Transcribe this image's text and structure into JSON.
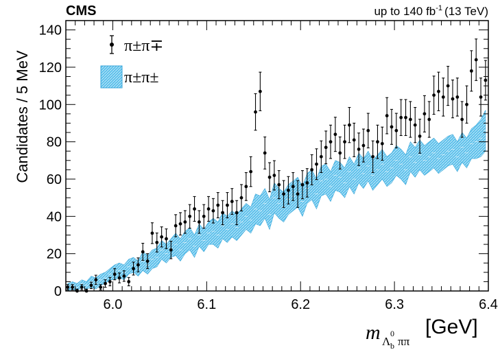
{
  "chart_data": {
    "type": "scatter",
    "experiment": "CMS",
    "lumi": "up to 140 fb",
    "lumi_exp": "-1",
    "energy": "(13 TeV)",
    "ylabel": "Candidates / 5 MeV",
    "xlabel_sym": "m",
    "xlabel_sub_base": "Λ",
    "xlabel_sub_b": "b",
    "xlabel_sub_0": "0",
    "xlabel_sub_tail": "ππ",
    "xlabel_unit": "[GeV]",
    "xlim": [
      5.95,
      6.4
    ],
    "ylim": [
      0,
      145
    ],
    "xticks": [
      "6.0",
      "6.1",
      "6.2",
      "6.3",
      "6.4"
    ],
    "yticks": [
      "0",
      "20",
      "40",
      "60",
      "80",
      "100",
      "120",
      "140"
    ],
    "legend": [
      {
        "label": "π±π∓",
        "style": "points",
        "color": "#000000"
      },
      {
        "label": "π±π±",
        "style": "band",
        "color": "#5bc0eb"
      }
    ],
    "series": [
      {
        "name": "π±π∓",
        "style": "points",
        "x": [
          5.952,
          5.957,
          5.962,
          5.967,
          5.972,
          5.977,
          5.982,
          5.987,
          5.992,
          5.997,
          6.002,
          6.007,
          6.012,
          6.017,
          6.022,
          6.027,
          6.032,
          6.037,
          6.042,
          6.047,
          6.052,
          6.057,
          6.062,
          6.067,
          6.072,
          6.077,
          6.082,
          6.087,
          6.092,
          6.097,
          6.102,
          6.107,
          6.112,
          6.117,
          6.122,
          6.127,
          6.132,
          6.137,
          6.142,
          6.147,
          6.152,
          6.157,
          6.162,
          6.167,
          6.172,
          6.177,
          6.182,
          6.187,
          6.192,
          6.197,
          6.202,
          6.207,
          6.212,
          6.217,
          6.222,
          6.227,
          6.232,
          6.237,
          6.242,
          6.247,
          6.252,
          6.257,
          6.262,
          6.267,
          6.272,
          6.277,
          6.282,
          6.287,
          6.292,
          6.297,
          6.302,
          6.307,
          6.312,
          6.317,
          6.322,
          6.327,
          6.332,
          6.337,
          6.342,
          6.347,
          6.352,
          6.357,
          6.362,
          6.367,
          6.372,
          6.377,
          6.382,
          6.387,
          6.392,
          6.397
        ],
        "y": [
          2,
          2,
          0,
          2,
          0,
          3,
          6,
          2,
          4,
          5,
          9,
          7,
          8,
          5,
          12,
          14,
          21,
          16,
          31,
          26,
          29,
          28,
          22,
          35,
          36,
          37,
          40,
          44,
          37,
          40,
          44,
          43,
          46,
          42,
          46,
          48,
          42,
          50,
          56,
          64,
          96,
          107,
          74,
          61,
          62,
          57,
          52,
          54,
          56,
          52,
          57,
          58,
          65,
          68,
          72,
          77,
          80,
          84,
          74,
          80,
          89,
          81,
          76,
          78,
          86,
          72,
          80,
          79,
          94,
          88,
          86,
          93,
          93,
          92,
          89,
          83,
          95,
          92,
          105,
          107,
          104,
          110,
          103,
          104,
          92,
          100,
          118,
          124,
          104,
          113
        ]
      },
      {
        "name": "π±π±",
        "style": "band",
        "x": [
          5.952,
          5.957,
          5.962,
          5.967,
          5.972,
          5.977,
          5.982,
          5.987,
          5.992,
          5.997,
          6.002,
          6.007,
          6.012,
          6.017,
          6.022,
          6.027,
          6.032,
          6.037,
          6.042,
          6.047,
          6.052,
          6.057,
          6.062,
          6.067,
          6.072,
          6.077,
          6.082,
          6.087,
          6.092,
          6.097,
          6.102,
          6.107,
          6.112,
          6.117,
          6.122,
          6.127,
          6.132,
          6.137,
          6.142,
          6.147,
          6.152,
          6.157,
          6.162,
          6.167,
          6.172,
          6.177,
          6.182,
          6.187,
          6.192,
          6.197,
          6.202,
          6.207,
          6.212,
          6.217,
          6.222,
          6.227,
          6.232,
          6.237,
          6.242,
          6.247,
          6.252,
          6.257,
          6.262,
          6.267,
          6.272,
          6.277,
          6.282,
          6.287,
          6.292,
          6.297,
          6.302,
          6.307,
          6.312,
          6.317,
          6.322,
          6.327,
          6.332,
          6.337,
          6.342,
          6.347,
          6.352,
          6.357,
          6.362,
          6.367,
          6.372,
          6.377,
          6.382,
          6.387,
          6.392,
          6.397
        ],
        "y": [
          2,
          3,
          2,
          4,
          3,
          5,
          4,
          6,
          7,
          9,
          10,
          11,
          10,
          13,
          14,
          12,
          16,
          14,
          17,
          18,
          22,
          20,
          23,
          25,
          22,
          26,
          28,
          24,
          30,
          27,
          31,
          32,
          30,
          35,
          33,
          36,
          34,
          37,
          40,
          38,
          44,
          43,
          47,
          41,
          50,
          47,
          45,
          49,
          51,
          53,
          48,
          55,
          57,
          52,
          59,
          60,
          56,
          62,
          61,
          58,
          64,
          60,
          66,
          63,
          67,
          62,
          65,
          68,
          64,
          66,
          70,
          68,
          65,
          72,
          69,
          73,
          70,
          72,
          74,
          71,
          73,
          75,
          76,
          72,
          77,
          74,
          79,
          80,
          82,
          86
        ],
        "err": [
          2,
          2,
          2,
          2,
          2,
          3,
          3,
          3,
          3,
          3,
          4,
          4,
          4,
          4,
          4,
          4,
          5,
          5,
          5,
          5,
          5,
          5,
          5,
          6,
          6,
          6,
          6,
          6,
          6,
          6,
          6,
          7,
          7,
          7,
          7,
          7,
          7,
          7,
          7,
          7,
          8,
          8,
          8,
          8,
          8,
          8,
          8,
          8,
          8,
          8,
          8,
          8,
          8,
          8,
          8,
          8,
          8,
          8,
          8,
          8,
          8,
          8,
          8,
          8,
          8,
          8,
          8,
          8,
          8,
          8,
          8,
          8,
          8,
          8,
          8,
          8,
          8,
          8,
          8,
          8,
          8,
          8,
          8,
          8,
          8,
          8,
          8,
          9,
          10,
          11
        ]
      }
    ]
  }
}
